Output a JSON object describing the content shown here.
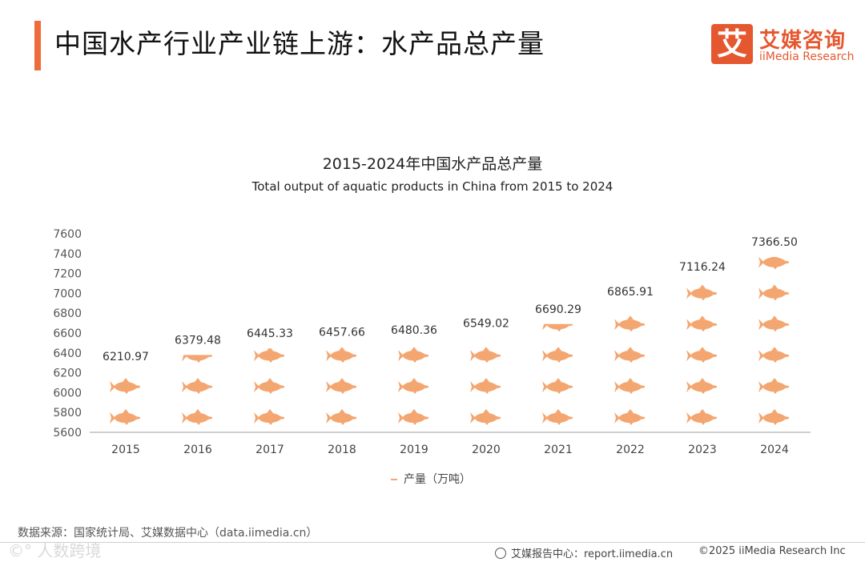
{
  "header": {
    "title": "中国水产行业产业链上游：水产品总产量",
    "logo_icon": "艾",
    "logo_cn": "艾媒咨询",
    "logo_en": "iiMedia Research"
  },
  "colors": {
    "accent": "#ee6c3a",
    "fish": "#f4a671",
    "brand": "#e5582f"
  },
  "chart_data": {
    "type": "bar",
    "title": "2015-2024年中国水产品总产量",
    "subtitle": "Total output of aquatic products in China from 2015 to 2024",
    "categories": [
      "2015",
      "2016",
      "2017",
      "2018",
      "2019",
      "2020",
      "2021",
      "2022",
      "2023",
      "2024"
    ],
    "series": [
      {
        "name": "产量（万吨）",
        "values": [
          6210.97,
          6379.48,
          6445.33,
          6457.66,
          6480.36,
          6549.02,
          6690.29,
          6865.91,
          7116.24,
          7366.5
        ]
      }
    ],
    "value_labels": [
      "6210.97",
      "6379.48",
      "6445.33",
      "6457.66",
      "6480.36",
      "6549.02",
      "6690.29",
      "6865.91",
      "7116.24",
      "7366.50"
    ],
    "ylim": [
      5600,
      7600
    ],
    "yticks": [
      "5600",
      "5800",
      "6000",
      "6200",
      "6400",
      "6600",
      "6800",
      "7000",
      "7200",
      "7400",
      "7600"
    ],
    "grid": false,
    "legend_position": "bottom",
    "mark": "fish-pictogram-icon"
  },
  "legend": {
    "label": "产量（万吨）"
  },
  "source": "数据来源：国家统计局、艾媒数据中心（data.iimedia.cn）",
  "footer": {
    "watermark": "©° 人数跨境",
    "report_link": "艾媒报告中心：report.iimedia.cn",
    "copyright": "©2025  iiMedia Research  Inc"
  }
}
